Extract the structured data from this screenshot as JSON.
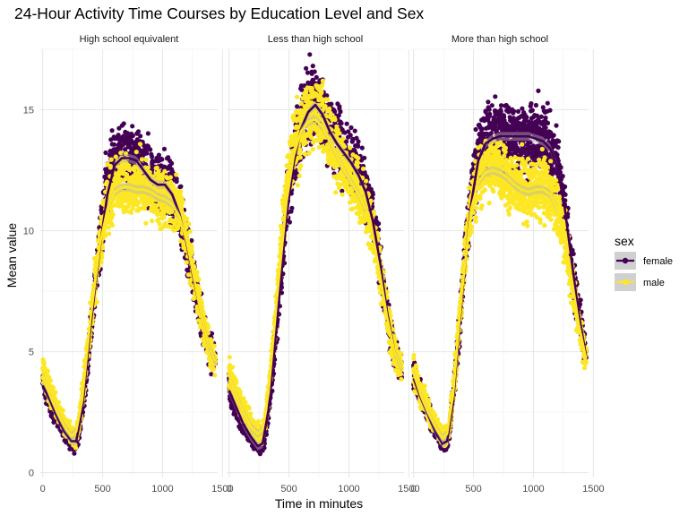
{
  "chart_data": {
    "type": "scatter",
    "title": "24-Hour Activity Time Courses by Education Level and Sex",
    "xlabel": "Time in minutes",
    "ylabel": "Mean value",
    "xlim": [
      -20,
      1460
    ],
    "ylim": [
      -0.2,
      17.5
    ],
    "x_ticks": [
      0,
      500,
      1000,
      1500
    ],
    "x_tick_labels": [
      "0",
      "500",
      "1000",
      "1500"
    ],
    "y_ticks": [
      0,
      5,
      10,
      15
    ],
    "y_tick_labels": [
      "0",
      "5",
      "10",
      "15"
    ],
    "grid": true,
    "facets": [
      "High school equivalent",
      "Less than high school",
      "More than high school"
    ],
    "legend": {
      "title": "sex",
      "position": "right",
      "entries": [
        "female",
        "male"
      ]
    },
    "colors": {
      "female": "#440154",
      "male": "#fde725",
      "band": "#b3b3b3"
    },
    "smooth_overlay": "loess line per sex",
    "series": [
      {
        "facet": "High school equivalent",
        "name": "female",
        "profile": [
          [
            0,
            4.0
          ],
          [
            60,
            3.0
          ],
          [
            120,
            2.4
          ],
          [
            180,
            1.8
          ],
          [
            240,
            1.3
          ],
          [
            270,
            1.1
          ],
          [
            300,
            1.6
          ],
          [
            360,
            3.8
          ],
          [
            420,
            6.8
          ],
          [
            480,
            9.6
          ],
          [
            540,
            12.0
          ],
          [
            600,
            12.8
          ],
          [
            660,
            13.0
          ],
          [
            720,
            13.0
          ],
          [
            780,
            13.1
          ],
          [
            840,
            12.6
          ],
          [
            900,
            12.2
          ],
          [
            960,
            11.9
          ],
          [
            1020,
            12.0
          ],
          [
            1080,
            11.6
          ],
          [
            1140,
            10.7
          ],
          [
            1200,
            9.5
          ],
          [
            1260,
            8.0
          ],
          [
            1320,
            6.5
          ],
          [
            1380,
            5.3
          ],
          [
            1440,
            4.6
          ]
        ],
        "smooth": [
          [
            0,
            3.6
          ],
          [
            60,
            3.0
          ],
          [
            120,
            2.3
          ],
          [
            180,
            1.7
          ],
          [
            240,
            1.3
          ],
          [
            280,
            1.3
          ],
          [
            330,
            2.6
          ],
          [
            400,
            6.1
          ],
          [
            480,
            9.4
          ],
          [
            540,
            11.5
          ],
          [
            600,
            12.7
          ],
          [
            660,
            13.0
          ],
          [
            720,
            13.0
          ],
          [
            780,
            12.9
          ],
          [
            840,
            12.5
          ],
          [
            900,
            12.1
          ],
          [
            960,
            11.9
          ],
          [
            1020,
            11.9
          ],
          [
            1080,
            11.5
          ],
          [
            1140,
            10.7
          ],
          [
            1200,
            9.5
          ],
          [
            1260,
            8.0
          ],
          [
            1320,
            6.6
          ],
          [
            1380,
            5.3
          ],
          [
            1440,
            4.6
          ]
        ]
      },
      {
        "facet": "High school equivalent",
        "name": "male",
        "profile": [
          [
            0,
            4.4
          ],
          [
            60,
            3.3
          ],
          [
            120,
            2.6
          ],
          [
            180,
            2.0
          ],
          [
            240,
            1.6
          ],
          [
            270,
            1.5
          ],
          [
            300,
            2.0
          ],
          [
            360,
            4.4
          ],
          [
            420,
            7.3
          ],
          [
            480,
            9.6
          ],
          [
            540,
            11.0
          ],
          [
            600,
            11.8
          ],
          [
            660,
            12.0
          ],
          [
            720,
            11.8
          ],
          [
            780,
            11.7
          ],
          [
            840,
            11.9
          ],
          [
            900,
            11.6
          ],
          [
            960,
            11.3
          ],
          [
            1020,
            11.5
          ],
          [
            1080,
            11.3
          ],
          [
            1140,
            10.8
          ],
          [
            1200,
            9.8
          ],
          [
            1260,
            8.2
          ],
          [
            1320,
            6.6
          ],
          [
            1380,
            5.3
          ],
          [
            1440,
            4.6
          ]
        ],
        "smooth": [
          [
            0,
            4.0
          ],
          [
            60,
            3.2
          ],
          [
            120,
            2.5
          ],
          [
            180,
            1.9
          ],
          [
            240,
            1.5
          ],
          [
            280,
            1.7
          ],
          [
            330,
            3.0
          ],
          [
            400,
            6.4
          ],
          [
            480,
            9.5
          ],
          [
            540,
            10.9
          ],
          [
            600,
            11.6
          ],
          [
            660,
            11.8
          ],
          [
            720,
            11.8
          ],
          [
            780,
            11.7
          ],
          [
            840,
            11.7
          ],
          [
            900,
            11.6
          ],
          [
            960,
            11.4
          ],
          [
            1020,
            11.3
          ],
          [
            1080,
            11.1
          ],
          [
            1140,
            10.6
          ],
          [
            1200,
            9.6
          ],
          [
            1260,
            8.1
          ],
          [
            1320,
            6.6
          ],
          [
            1380,
            5.3
          ],
          [
            1440,
            4.6
          ]
        ]
      },
      {
        "facet": "Less than high school",
        "name": "female",
        "profile": [
          [
            0,
            3.5
          ],
          [
            60,
            2.6
          ],
          [
            120,
            2.0
          ],
          [
            180,
            1.5
          ],
          [
            240,
            1.1
          ],
          [
            270,
            1.0
          ],
          [
            300,
            1.4
          ],
          [
            360,
            4.0
          ],
          [
            420,
            7.5
          ],
          [
            480,
            10.8
          ],
          [
            540,
            13.0
          ],
          [
            600,
            14.4
          ],
          [
            660,
            15.0
          ],
          [
            720,
            15.4
          ],
          [
            780,
            14.9
          ],
          [
            840,
            14.2
          ],
          [
            900,
            13.9
          ],
          [
            960,
            13.2
          ],
          [
            1020,
            12.9
          ],
          [
            1080,
            12.4
          ],
          [
            1140,
            11.7
          ],
          [
            1200,
            10.5
          ],
          [
            1260,
            8.7
          ],
          [
            1320,
            6.5
          ],
          [
            1380,
            5.0
          ],
          [
            1440,
            4.3
          ]
        ],
        "smooth": [
          [
            0,
            3.4
          ],
          [
            60,
            2.7
          ],
          [
            120,
            2.0
          ],
          [
            180,
            1.5
          ],
          [
            240,
            1.1
          ],
          [
            280,
            1.2
          ],
          [
            330,
            2.6
          ],
          [
            400,
            6.2
          ],
          [
            480,
            10.6
          ],
          [
            540,
            12.8
          ],
          [
            600,
            14.2
          ],
          [
            660,
            14.9
          ],
          [
            720,
            15.2
          ],
          [
            780,
            14.8
          ],
          [
            840,
            14.1
          ],
          [
            900,
            13.6
          ],
          [
            960,
            13.2
          ],
          [
            1020,
            12.8
          ],
          [
            1080,
            12.3
          ],
          [
            1140,
            11.6
          ],
          [
            1200,
            10.4
          ],
          [
            1260,
            8.7
          ],
          [
            1320,
            6.6
          ],
          [
            1380,
            5.0
          ],
          [
            1440,
            4.3
          ]
        ]
      },
      {
        "facet": "Less than high school",
        "name": "male",
        "profile": [
          [
            0,
            4.2
          ],
          [
            60,
            3.3
          ],
          [
            120,
            2.6
          ],
          [
            180,
            2.0
          ],
          [
            240,
            1.6
          ],
          [
            270,
            1.5
          ],
          [
            300,
            2.0
          ],
          [
            360,
            4.8
          ],
          [
            420,
            8.5
          ],
          [
            480,
            11.6
          ],
          [
            540,
            13.4
          ],
          [
            600,
            14.3
          ],
          [
            660,
            14.7
          ],
          [
            720,
            14.8
          ],
          [
            780,
            14.5
          ],
          [
            840,
            13.8
          ],
          [
            900,
            13.2
          ],
          [
            960,
            12.6
          ],
          [
            1020,
            12.1
          ],
          [
            1080,
            11.6
          ],
          [
            1140,
            11.0
          ],
          [
            1200,
            9.9
          ],
          [
            1260,
            8.3
          ],
          [
            1320,
            6.4
          ],
          [
            1380,
            5.0
          ],
          [
            1440,
            4.3
          ]
        ],
        "smooth": [
          [
            0,
            4.0
          ],
          [
            60,
            3.2
          ],
          [
            120,
            2.5
          ],
          [
            180,
            1.9
          ],
          [
            240,
            1.6
          ],
          [
            280,
            1.8
          ],
          [
            330,
            3.3
          ],
          [
            400,
            7.2
          ],
          [
            480,
            11.2
          ],
          [
            540,
            13.1
          ],
          [
            600,
            14.1
          ],
          [
            660,
            14.5
          ],
          [
            720,
            14.6
          ],
          [
            780,
            14.3
          ],
          [
            840,
            13.7
          ],
          [
            900,
            13.1
          ],
          [
            960,
            12.5
          ],
          [
            1020,
            12.0
          ],
          [
            1080,
            11.5
          ],
          [
            1140,
            10.9
          ],
          [
            1200,
            9.8
          ],
          [
            1260,
            8.2
          ],
          [
            1320,
            6.4
          ],
          [
            1380,
            5.0
          ],
          [
            1440,
            4.3
          ]
        ]
      },
      {
        "facet": "More than high school",
        "name": "female",
        "profile": [
          [
            0,
            4.1
          ],
          [
            60,
            3.2
          ],
          [
            120,
            2.5
          ],
          [
            180,
            1.8
          ],
          [
            240,
            1.3
          ],
          [
            270,
            1.1
          ],
          [
            300,
            1.7
          ],
          [
            360,
            4.7
          ],
          [
            420,
            8.4
          ],
          [
            480,
            11.6
          ],
          [
            540,
            13.2
          ],
          [
            600,
            13.7
          ],
          [
            660,
            13.9
          ],
          [
            720,
            14.0
          ],
          [
            780,
            13.9
          ],
          [
            840,
            13.8
          ],
          [
            900,
            13.9
          ],
          [
            960,
            13.8
          ],
          [
            1020,
            13.9
          ],
          [
            1080,
            13.7
          ],
          [
            1140,
            13.4
          ],
          [
            1200,
            12.7
          ],
          [
            1260,
            11.0
          ],
          [
            1320,
            8.6
          ],
          [
            1380,
            6.5
          ],
          [
            1440,
            4.7
          ]
        ],
        "smooth": [
          [
            0,
            3.9
          ],
          [
            60,
            3.1
          ],
          [
            120,
            2.4
          ],
          [
            180,
            1.7
          ],
          [
            240,
            1.2
          ],
          [
            280,
            1.3
          ],
          [
            330,
            2.9
          ],
          [
            400,
            7.1
          ],
          [
            480,
            11.1
          ],
          [
            540,
            12.9
          ],
          [
            600,
            13.6
          ],
          [
            660,
            13.8
          ],
          [
            720,
            13.9
          ],
          [
            780,
            13.9
          ],
          [
            840,
            13.9
          ],
          [
            900,
            13.9
          ],
          [
            960,
            13.9
          ],
          [
            1020,
            13.8
          ],
          [
            1080,
            13.7
          ],
          [
            1140,
            13.4
          ],
          [
            1200,
            12.6
          ],
          [
            1260,
            11.0
          ],
          [
            1320,
            8.7
          ],
          [
            1380,
            6.5
          ],
          [
            1440,
            4.8
          ]
        ]
      },
      {
        "facet": "More than high school",
        "name": "male",
        "profile": [
          [
            0,
            4.3
          ],
          [
            60,
            3.3
          ],
          [
            120,
            2.6
          ],
          [
            180,
            2.0
          ],
          [
            240,
            1.5
          ],
          [
            270,
            1.4
          ],
          [
            300,
            1.9
          ],
          [
            360,
            4.9
          ],
          [
            420,
            8.5
          ],
          [
            480,
            11.2
          ],
          [
            540,
            12.2
          ],
          [
            600,
            12.5
          ],
          [
            660,
            12.6
          ],
          [
            720,
            12.5
          ],
          [
            780,
            12.2
          ],
          [
            840,
            11.9
          ],
          [
            900,
            11.7
          ],
          [
            960,
            11.6
          ],
          [
            1020,
            11.7
          ],
          [
            1080,
            11.8
          ],
          [
            1140,
            11.6
          ],
          [
            1200,
            11.0
          ],
          [
            1260,
            9.8
          ],
          [
            1320,
            8.0
          ],
          [
            1380,
            6.1
          ],
          [
            1440,
            4.7
          ]
        ],
        "smooth": [
          [
            0,
            4.1
          ],
          [
            60,
            3.2
          ],
          [
            120,
            2.5
          ],
          [
            180,
            1.9
          ],
          [
            240,
            1.4
          ],
          [
            280,
            1.6
          ],
          [
            330,
            3.2
          ],
          [
            400,
            7.3
          ],
          [
            480,
            10.9
          ],
          [
            540,
            12.0
          ],
          [
            600,
            12.4
          ],
          [
            660,
            12.5
          ],
          [
            720,
            12.4
          ],
          [
            780,
            12.2
          ],
          [
            840,
            11.9
          ],
          [
            900,
            11.7
          ],
          [
            960,
            11.6
          ],
          [
            1020,
            11.7
          ],
          [
            1080,
            11.7
          ],
          [
            1140,
            11.5
          ],
          [
            1200,
            10.9
          ],
          [
            1260,
            9.7
          ],
          [
            1320,
            8.0
          ],
          [
            1380,
            6.1
          ],
          [
            1440,
            4.7
          ]
        ]
      }
    ]
  }
}
